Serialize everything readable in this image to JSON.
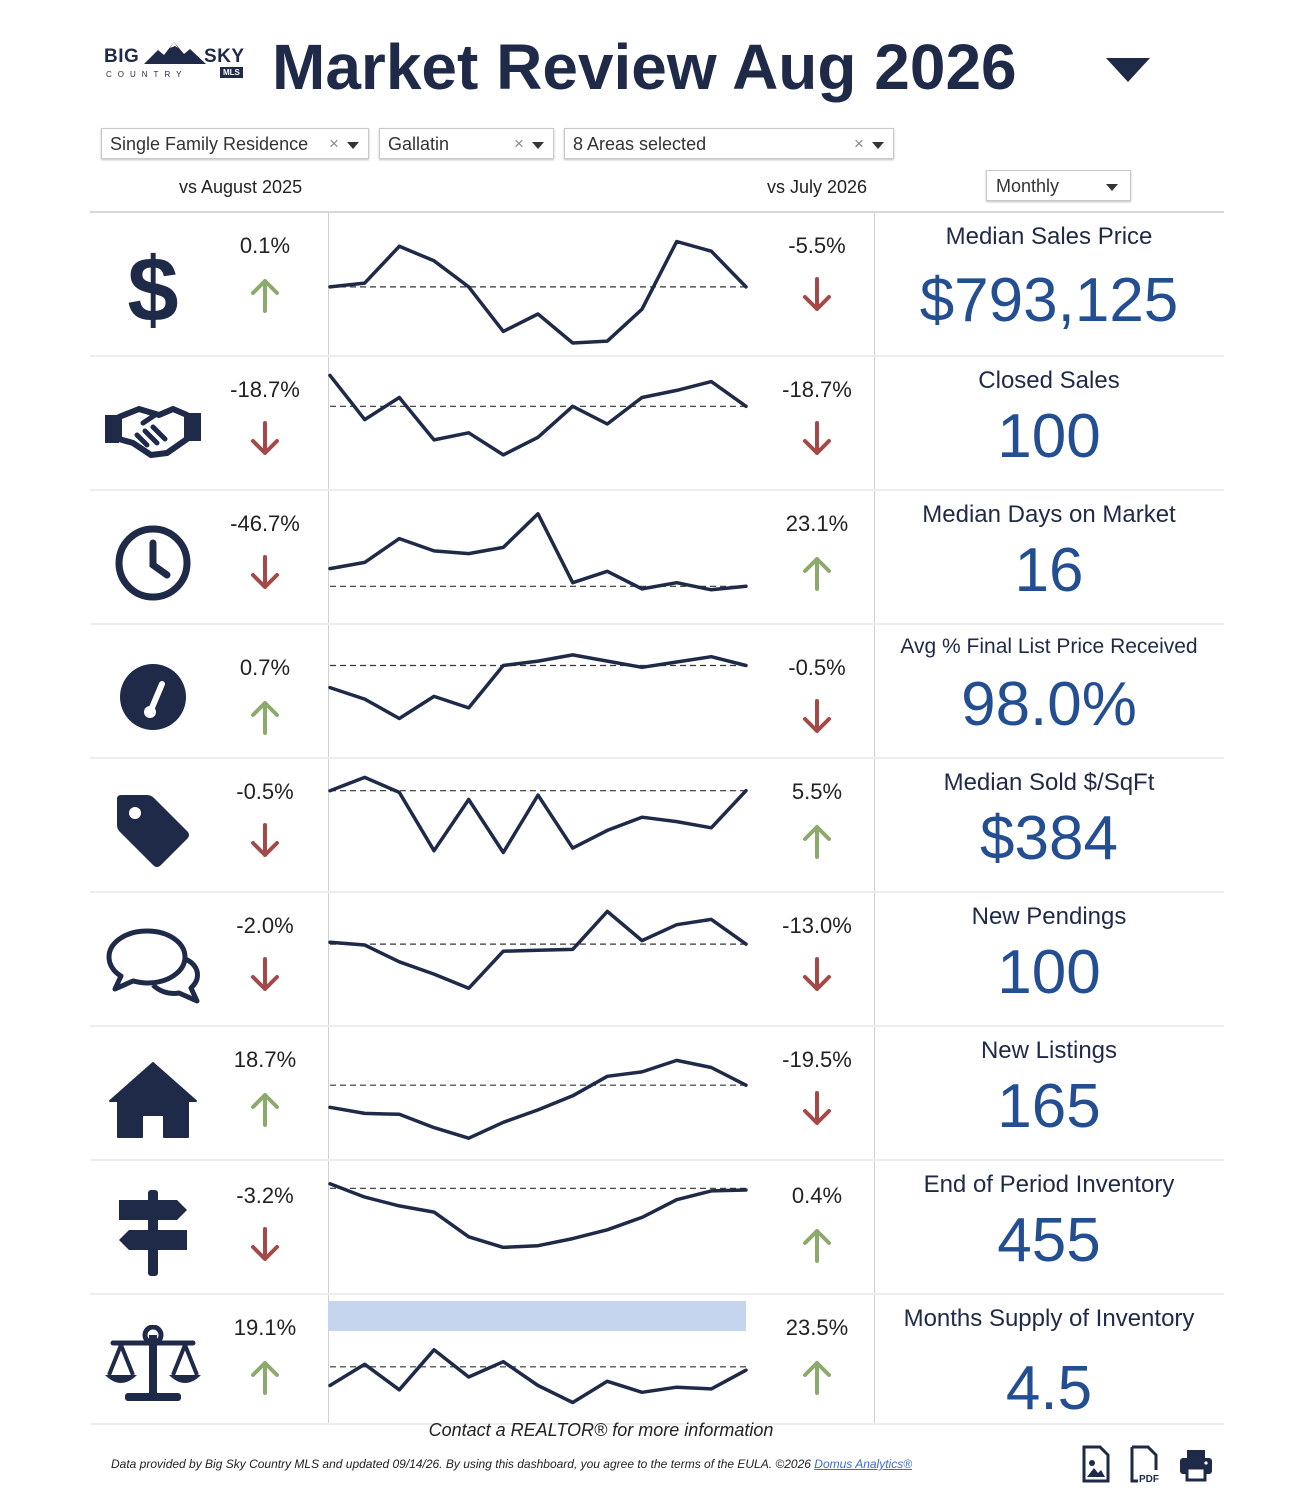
{
  "logo": {
    "line1a": "BIG",
    "line1b": "SKY",
    "line2": "COUNTRY",
    "badge": "MLS"
  },
  "header": {
    "title": "Market Review  Aug 2026"
  },
  "filters": {
    "property_type": "Single Family Residence",
    "county": "Gallatin",
    "areas": "8 Areas selected",
    "clear_glyph": "×"
  },
  "columns": {
    "yoy": "vs August 2025",
    "mom": "vs July 2026"
  },
  "period_select": {
    "value": "Monthly"
  },
  "colors": {
    "up": "#8caa6c",
    "down": "#a34a48",
    "navy": "#1e2a48",
    "value_blue": "#234e91",
    "highlight": "#c6d5ee"
  },
  "metrics": [
    {
      "label": "Median Sales Price",
      "value": "$793,125",
      "yoy": "0.1%",
      "yoy_dir": "up",
      "mom": "-5.5%",
      "mom_dir": "down",
      "icon": "dollar-icon",
      "spark": [
        0.62,
        0.58,
        0.2,
        0.35,
        0.62,
        1.08,
        0.9,
        1.2,
        1.18,
        0.85,
        0.15,
        0.25,
        0.62
      ],
      "baseline": 0.62
    },
    {
      "label": "Closed Sales",
      "value": "100",
      "yoy": "-18.7%",
      "yoy_dir": "down",
      "mom": "-18.7%",
      "mom_dir": "down",
      "icon": "handshake-icon",
      "spark": [
        0.05,
        0.55,
        0.3,
        0.78,
        0.7,
        0.95,
        0.75,
        0.4,
        0.6,
        0.3,
        0.22,
        0.12,
        0.4
      ],
      "baseline": 0.4
    },
    {
      "label": "Median Days on Market",
      "value": "16",
      "yoy": "-46.7%",
      "yoy_dir": "down",
      "mom": "23.1%",
      "mom_dir": "up",
      "icon": "clock-icon",
      "spark": [
        0.72,
        0.65,
        0.38,
        0.52,
        0.55,
        0.48,
        0.1,
        0.88,
        0.75,
        0.95,
        0.88,
        0.96,
        0.92
      ],
      "baseline": 0.92
    },
    {
      "label": "Avg % Final List Price Received",
      "value": "98.0%",
      "yoy": "0.7%",
      "yoy_dir": "up",
      "mom": "-0.5%",
      "mom_dir": "down",
      "icon": "gauge-icon",
      "spark": [
        0.55,
        0.68,
        0.9,
        0.65,
        0.78,
        0.3,
        0.25,
        0.18,
        0.25,
        0.32,
        0.26,
        0.2,
        0.3
      ],
      "baseline": 0.3
    },
    {
      "label": "Median Sold $/SqFt",
      "value": "$384",
      "yoy": "-0.5%",
      "yoy_dir": "down",
      "mom": "5.5%",
      "mom_dir": "up",
      "icon": "price-tag-icon",
      "spark": [
        0.2,
        0.05,
        0.22,
        0.88,
        0.3,
        0.9,
        0.25,
        0.85,
        0.65,
        0.5,
        0.55,
        0.62,
        0.2
      ],
      "baseline": 0.2
    },
    {
      "label": "New Pendings",
      "value": "100",
      "yoy": "-2.0%",
      "yoy_dir": "down",
      "mom": "-13.0%",
      "mom_dir": "down",
      "icon": "chat-bubbles-icon",
      "spark": [
        0.4,
        0.43,
        0.62,
        0.76,
        0.92,
        0.5,
        0.49,
        0.48,
        0.05,
        0.38,
        0.2,
        0.14,
        0.42
      ],
      "baseline": 0.42
    },
    {
      "label": "New Listings",
      "value": "165",
      "yoy": "18.7%",
      "yoy_dir": "up",
      "mom": "-19.5%",
      "mom_dir": "down",
      "icon": "house-icon",
      "spark": [
        0.75,
        0.82,
        0.83,
        0.98,
        1.1,
        0.92,
        0.78,
        0.62,
        0.4,
        0.35,
        0.22,
        0.3,
        0.5
      ],
      "baseline": 0.5
    },
    {
      "label": "End of Period Inventory",
      "value": "455",
      "yoy": "-3.2%",
      "yoy_dir": "down",
      "mom": "0.4%",
      "mom_dir": "up",
      "icon": "signpost-icon",
      "spark": [
        0.1,
        0.25,
        0.35,
        0.42,
        0.7,
        0.82,
        0.8,
        0.72,
        0.62,
        0.48,
        0.28,
        0.18,
        0.17
      ],
      "baseline": 0.15
    },
    {
      "label": "Months Supply of Inventory",
      "value": "4.5",
      "yoy": "19.1%",
      "yoy_dir": "up",
      "mom": "23.5%",
      "mom_dir": "up",
      "icon": "balance-scale-icon",
      "spark": [
        0.9,
        0.65,
        0.95,
        0.48,
        0.8,
        0.62,
        0.9,
        1.1,
        0.85,
        0.98,
        0.92,
        0.94,
        0.72
      ],
      "baseline": 0.68,
      "highlight": true
    }
  ],
  "footer": {
    "contact": "Contact a REALTOR® for more information",
    "data_note": "Data provided by Big Sky Country MLS and updated 09/14/26.  By using this dashboard, you agree to the terms of the ",
    "eula": "EULA",
    "copyright": ".  ©2026 ",
    "brand": "Domus Analytics®"
  },
  "downloads": [
    "image-download-icon",
    "pdf-download-icon",
    "print-icon"
  ]
}
